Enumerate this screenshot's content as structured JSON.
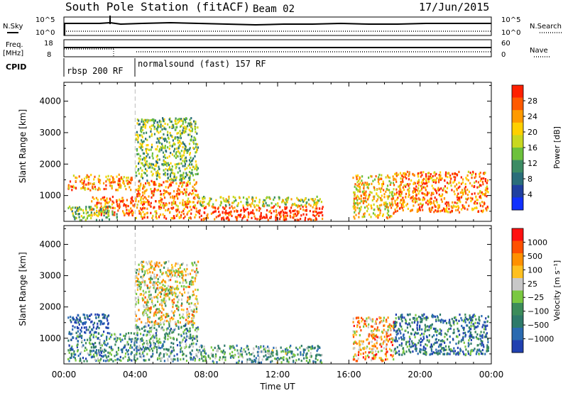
{
  "header": {
    "station": "South Pole Station (fitACF)",
    "beam": "Beam 02",
    "date": "17/Jun/2015"
  },
  "top_strips": {
    "nsky_label": "N.Sky",
    "nsky_ticks": [
      "10^5",
      "10^0"
    ],
    "nsearch_label": "N.Search",
    "nsearch_ticks": [
      "10^5",
      "10^0"
    ],
    "freq_label": "Freq.",
    "freq_unit": "[MHz]",
    "freq_ticks": [
      "18",
      "8"
    ],
    "nave_label": "Nave",
    "nave_ticks": [
      "60",
      "0"
    ],
    "cpid_label": "CPID",
    "cpid_segments": [
      {
        "label": "rbsp 200 RF",
        "start_hour": 0.0,
        "end_hour": 4.0
      },
      {
        "label": "normalsound (fast) 157 RF",
        "start_hour": 4.0,
        "end_hour": 24.0
      }
    ]
  },
  "chart_data": [
    {
      "type": "heatmap",
      "name": "power",
      "ylabel": "Slant Range [km]",
      "yticks": [
        1000,
        2000,
        3000,
        4000
      ],
      "ylim": [
        180,
        4600
      ],
      "xlim": [
        0,
        24
      ],
      "colorbar": {
        "label": "Power [dB]",
        "ticks": [
          "4",
          "8",
          "12",
          "16",
          "20",
          "24",
          "28"
        ],
        "colors": [
          "#1030ff",
          "#2040a0",
          "#2a6e7a",
          "#3c8c64",
          "#6cc13c",
          "#c8d820",
          "#ffd000",
          "#ff9a00",
          "#ff5a00",
          "#ff2000"
        ]
      },
      "regions": [
        {
          "x0": 0.2,
          "x1": 3.8,
          "y0": 1200,
          "y1": 1700,
          "level": 0.75
        },
        {
          "x0": 1.5,
          "x1": 4.0,
          "y0": 400,
          "y1": 1000,
          "level": 0.85
        },
        {
          "x0": 4.0,
          "x1": 7.5,
          "y0": 300,
          "y1": 1500,
          "level": 0.8
        },
        {
          "x0": 4.0,
          "x1": 7.5,
          "y0": 1500,
          "y1": 3500,
          "level": 0.45
        },
        {
          "x0": 7.5,
          "x1": 14.5,
          "y0": 250,
          "y1": 700,
          "level": 0.95
        },
        {
          "x0": 7.5,
          "x1": 14.5,
          "y0": 700,
          "y1": 1000,
          "level": 0.55
        },
        {
          "x0": 16.2,
          "x1": 18.5,
          "y0": 300,
          "y1": 1700,
          "level": 0.65
        },
        {
          "x0": 18.5,
          "x1": 23.8,
          "y0": 500,
          "y1": 1800,
          "level": 0.8
        },
        {
          "x0": 0.2,
          "x1": 3.0,
          "y0": 250,
          "y1": 700,
          "level": 0.45
        }
      ]
    },
    {
      "type": "heatmap",
      "name": "velocity",
      "ylabel": "Slant Range [km]",
      "yticks": [
        1000,
        2000,
        3000,
        4000
      ],
      "ylim": [
        180,
        4600
      ],
      "xlim": [
        0,
        24
      ],
      "xticks": [
        "00:00",
        "04:00",
        "08:00",
        "12:00",
        "16:00",
        "20:00",
        "00:00"
      ],
      "xlabel": "Time UT",
      "colorbar": {
        "label": "Velocity [m s⁻¹]",
        "ticks": [
          "1000",
          "500",
          "100",
          "25",
          "−25",
          "−100",
          "−500",
          "−1000"
        ],
        "colors": [
          "#2040b0",
          "#2a6ab0",
          "#2e7a6a",
          "#3c8c5a",
          "#7ac840",
          "#c8c8c8",
          "#ffc020",
          "#ff9000",
          "#ff5000",
          "#ff1010"
        ]
      },
      "regions": [
        {
          "x0": 0.2,
          "x1": 2.5,
          "y0": 1200,
          "y1": 1800,
          "level": 0.05
        },
        {
          "x0": 0.2,
          "x1": 4.0,
          "y0": 300,
          "y1": 1200,
          "level": 0.3
        },
        {
          "x0": 4.0,
          "x1": 7.5,
          "y0": 300,
          "y1": 1500,
          "level": 0.32
        },
        {
          "x0": 4.0,
          "x1": 7.5,
          "y0": 1500,
          "y1": 3500,
          "level": 0.58
        },
        {
          "x0": 7.5,
          "x1": 14.5,
          "y0": 250,
          "y1": 800,
          "level": 0.36
        },
        {
          "x0": 16.2,
          "x1": 18.5,
          "y0": 300,
          "y1": 1700,
          "level": 0.7
        },
        {
          "x0": 18.5,
          "x1": 23.8,
          "y0": 500,
          "y1": 1800,
          "level": 0.22
        }
      ]
    }
  ]
}
